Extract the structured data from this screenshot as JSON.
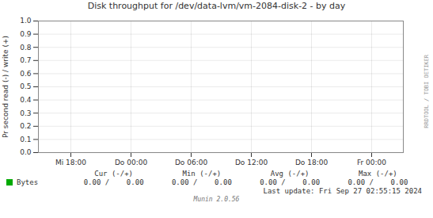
{
  "chart_data": {
    "type": "line",
    "title": "Disk throughput for /dev/data-lvm/vm-2084-disk-2  -  by day",
    "ylabel": "Pr second read (-) / write (+)",
    "categories": [
      "Mi 18:00",
      "Do 00:00",
      "Do 06:00",
      "Do 12:00",
      "Do 18:00",
      "Fr 00:00"
    ],
    "series": [
      {
        "name": "Bytes",
        "color": "#00aa00",
        "values": [
          null,
          null,
          null,
          null,
          null,
          null
        ]
      }
    ],
    "ylim": [
      0,
      1
    ],
    "yticks": [
      {
        "value": 0,
        "label": "0.0"
      },
      0.1,
      0.2,
      0.3,
      0.4,
      0.5,
      0.6,
      0.7,
      0.8,
      0.9,
      {
        "value": 1,
        "label": "1.0"
      }
    ],
    "grid": true,
    "table_header": [
      "Cur (-/+)",
      "Min (-/+)",
      "Avg (-/+)",
      "Max (-/+)"
    ],
    "table_values": [
      "0.00 /    0.00",
      "0.00 /    0.00",
      "0.00 /    0.00",
      "0.00 /    0.00"
    ],
    "annotations": [
      "Last update: Fri Sep 27 02:55:15 2024",
      "Munin 2.0.56",
      "RRDTOOL / TOBI OETIKER"
    ]
  }
}
